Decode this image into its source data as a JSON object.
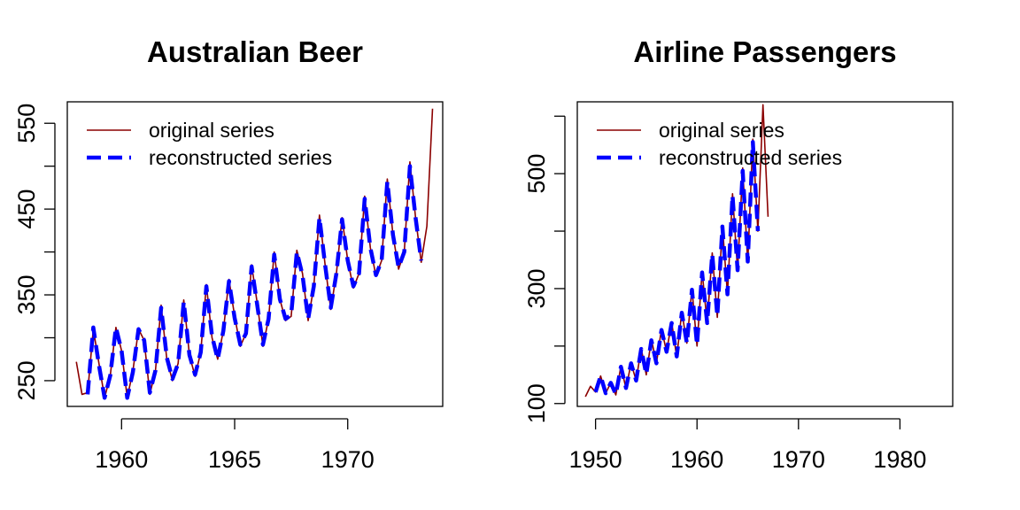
{
  "chart_data": [
    {
      "type": "line",
      "title": "Australian Beer",
      "xlabel": "",
      "ylabel": "",
      "xlim": [
        1957.6,
        1974.2
      ],
      "ylim": [
        220,
        575
      ],
      "x_ticks": [
        1960,
        1965,
        1970
      ],
      "x_tick_labels": [
        "1960",
        "1965",
        "1970"
      ],
      "y_ticks": [
        250,
        300,
        350,
        400,
        450,
        500,
        550
      ],
      "y_tick_labels": [
        "250",
        "",
        "350",
        "",
        "450",
        "",
        "550"
      ],
      "legend": {
        "position": "top-left",
        "entries": [
          "original series",
          "reconstructed series"
        ]
      },
      "grid": false,
      "series": [
        {
          "name": "original series",
          "color": "#8b0000",
          "style": "solid",
          "start": 1958.0,
          "step": 0.25,
          "values": [
            272,
            234,
            236,
            310,
            270,
            230,
            256,
            312,
            285,
            230,
            261,
            310,
            297,
            234,
            262,
            338,
            275,
            250,
            270,
            344,
            280,
            255,
            283,
            362,
            300,
            275,
            308,
            368,
            325,
            290,
            305,
            385,
            340,
            290,
            322,
            400,
            345,
            320,
            325,
            402,
            375,
            320,
            360,
            443,
            385,
            333,
            375,
            440,
            390,
            358,
            375,
            465,
            405,
            372,
            390,
            485,
            420,
            380,
            400,
            505,
            440,
            388,
            430,
            567
          ]
        },
        {
          "name": "reconstructed series",
          "color": "#0000ff",
          "style": "dashed",
          "start": 1958.5,
          "step": 0.25,
          "values": [
            234,
            312,
            268,
            230,
            256,
            312,
            285,
            230,
            260,
            310,
            297,
            236,
            262,
            335,
            277,
            252,
            270,
            342,
            280,
            257,
            283,
            360,
            302,
            275,
            308,
            366,
            323,
            292,
            305,
            383,
            338,
            292,
            322,
            397,
            345,
            322,
            327,
            400,
            373,
            322,
            360,
            440,
            385,
            335,
            375,
            438,
            390,
            360,
            375,
            462,
            405,
            373,
            390,
            482,
            420,
            382,
            400,
            500,
            440,
            390
          ]
        }
      ]
    },
    {
      "type": "line",
      "title": "Airline Passengers",
      "xlabel": "",
      "ylabel": "",
      "xlim": [
        1948.2,
        1985.2
      ],
      "ylim": [
        95,
        625
      ],
      "x_ticks": [
        1950,
        1960,
        1970,
        1980
      ],
      "x_tick_labels": [
        "1950",
        "1960",
        "1970",
        "1980"
      ],
      "y_ticks": [
        100,
        200,
        300,
        400,
        500,
        600
      ],
      "y_tick_labels": [
        "100",
        "",
        "300",
        "",
        "500",
        ""
      ],
      "legend": {
        "position": "top-left",
        "entries": [
          "original series",
          "reconstructed series"
        ]
      },
      "grid": false,
      "series": [
        {
          "name": "original series",
          "color": "#8b0000",
          "style": "solid",
          "start": 1949.0,
          "step": 0.5,
          "values": [
            112,
            130,
            120,
            148,
            118,
            136,
            115,
            165,
            126,
            170,
            140,
            196,
            150,
            212,
            170,
            230,
            190,
            242,
            180,
            260,
            205,
            300,
            200,
            330,
            240,
            362,
            250,
            410,
            290,
            465,
            330,
            510,
            345,
            560,
            400,
            620,
            425
          ]
        },
        {
          "name": "reconstructed series",
          "color": "#0000ff",
          "style": "dashed",
          "start": 1950.0,
          "step": 0.5,
          "values": [
            120,
            148,
            118,
            136,
            116,
            164,
            127,
            170,
            140,
            195,
            151,
            210,
            170,
            228,
            190,
            240,
            182,
            258,
            205,
            298,
            202,
            328,
            240,
            360,
            252,
            408,
            290,
            462,
            332,
            505,
            347,
            555,
            400
          ]
        }
      ]
    }
  ]
}
